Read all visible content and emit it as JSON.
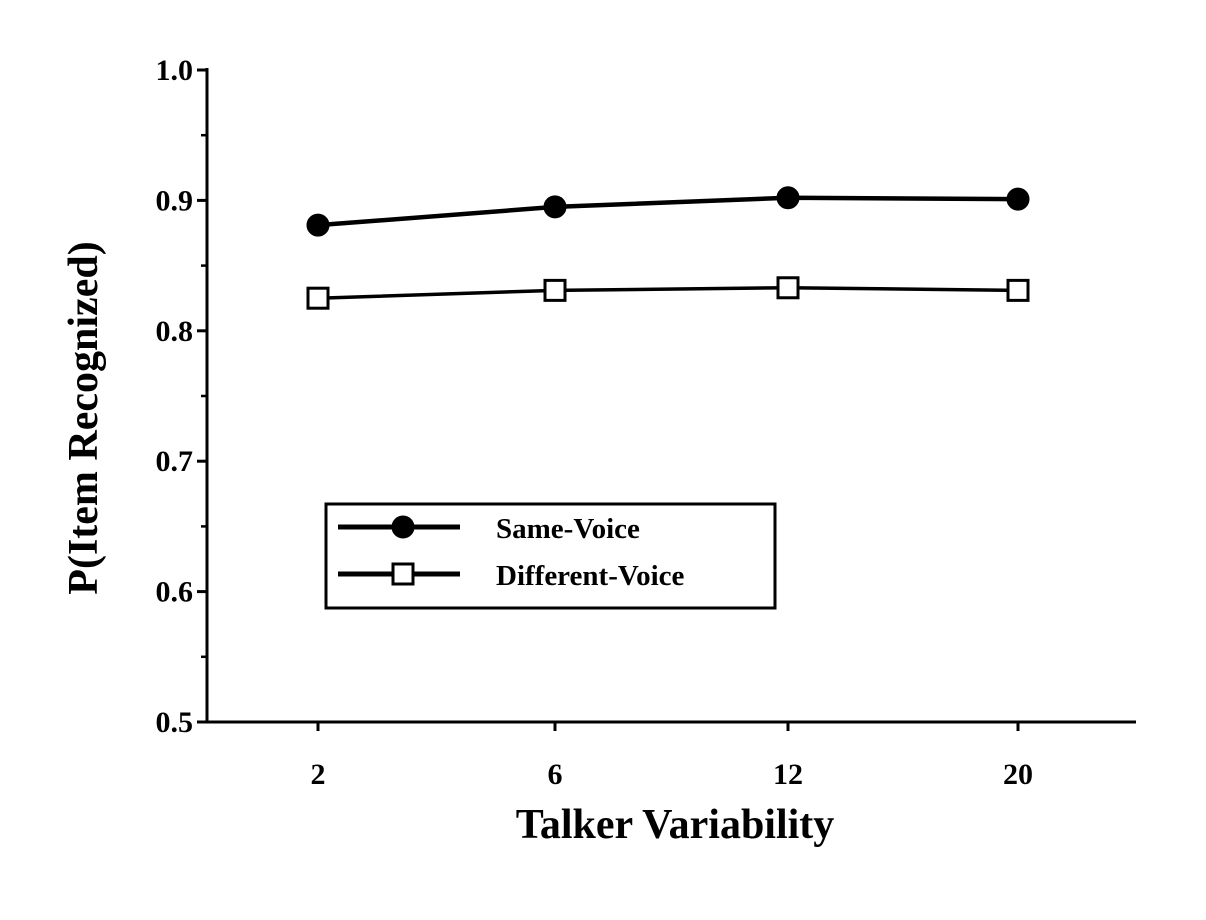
{
  "chart_data": {
    "type": "line",
    "title": "",
    "xlabel": "Talker Variability",
    "ylabel": "P(Item Recognized)",
    "categories": [
      "2",
      "6",
      "12",
      "20"
    ],
    "ylim": [
      0.5,
      1.0
    ],
    "yticks": [
      0.5,
      0.6,
      0.7,
      0.8,
      0.9,
      1.0
    ],
    "ytick_labels": [
      "0.5",
      "0.6",
      "0.7",
      "0.8",
      "0.9",
      "1.0"
    ],
    "grid": false,
    "legend_position": "lower-left",
    "series": [
      {
        "name": "Same-Voice",
        "marker": "filled-circle",
        "color": "#000000",
        "values": [
          0.881,
          0.895,
          0.902,
          0.901
        ]
      },
      {
        "name": "Different-Voice",
        "marker": "open-square",
        "color": "#000000",
        "values": [
          0.825,
          0.831,
          0.833,
          0.831
        ]
      }
    ]
  }
}
